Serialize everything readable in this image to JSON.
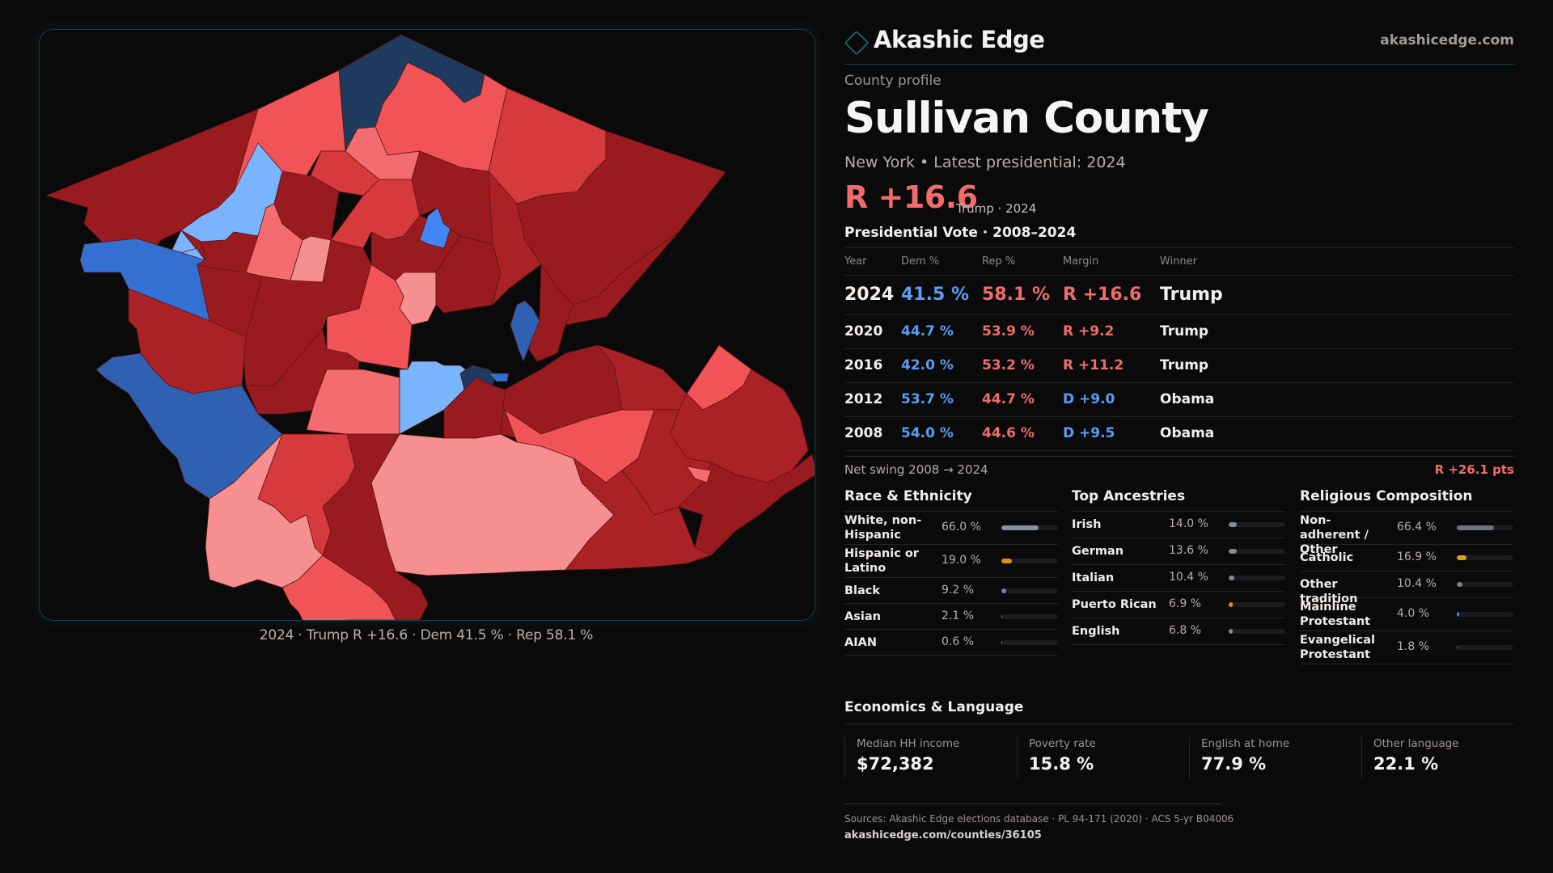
{
  "brand": {
    "name": "Akashic Edge",
    "url": "akashicedge.com",
    "logo_icon": "diamond-outline-icon"
  },
  "profile": {
    "eyebrow": "County profile",
    "county": "Sullivan County",
    "subtitle": "New York  • Latest presidential: 2024",
    "headline_margin": "R +16.6",
    "headline_sub": "Trump · 2024"
  },
  "map": {
    "caption": "2024 · Trump R +16.6 · Dem 41.5 % · Rep 58.1 %",
    "palette": {
      "r_strong": "#9a1b1f",
      "r_lean_dark": "#ab2226",
      "r_mid": "#d63a3d",
      "r_light": "#f05457",
      "r_pale": "#f46c6d",
      "r_pink": "#f68f8f",
      "d_navy": "#1f3a5f",
      "d_blue": "#3470d1",
      "d_bright": "#3f86f4",
      "d_light": "#7ab4ff",
      "d_steel": "#2f60b1"
    }
  },
  "vote": {
    "title": "Presidential Vote · 2008–2024",
    "headers": {
      "year": "Year",
      "dem": "Dem %",
      "rep": "Rep %",
      "margin": "Margin",
      "winner": "Winner"
    },
    "rows": [
      {
        "year": "2024",
        "dem": "41.5 %",
        "rep": "58.1 %",
        "margin": "R +16.6",
        "winner": "Trump",
        "party": "R"
      },
      {
        "year": "2020",
        "dem": "44.7 %",
        "rep": "53.9 %",
        "margin": "R +9.2",
        "winner": "Trump",
        "party": "R"
      },
      {
        "year": "2016",
        "dem": "42.0 %",
        "rep": "53.2 %",
        "margin": "R +11.2",
        "winner": "Trump",
        "party": "R"
      },
      {
        "year": "2012",
        "dem": "53.7 %",
        "rep": "44.7 %",
        "margin": "D +9.0",
        "winner": "Obama",
        "party": "D"
      },
      {
        "year": "2008",
        "dem": "54.0 %",
        "rep": "44.6 %",
        "margin": "D +9.5",
        "winner": "Obama",
        "party": "D"
      }
    ],
    "swing_label": "Net swing 2008 → 2024",
    "swing_value": "R +26.1 pts"
  },
  "race": {
    "title": "Race & Ethnicity",
    "items": [
      {
        "label": "White, non-Hispanic",
        "value": "66.0 %",
        "pct": 66.0,
        "color": "#8590a3"
      },
      {
        "label": "Hispanic or Latino",
        "value": "19.0 %",
        "pct": 19.0,
        "color": "#d9921a"
      },
      {
        "label": "Black",
        "value": "9.2 %",
        "pct": 9.2,
        "color": "#8a6ed6"
      },
      {
        "label": "Asian",
        "value": "2.1 %",
        "pct": 2.1,
        "color": "#2bb17a"
      },
      {
        "label": "AIAN",
        "value": "0.6 %",
        "pct": 0.6,
        "color": "#e07a2a"
      }
    ]
  },
  "ancestry": {
    "title": "Top Ancestries",
    "items": [
      {
        "label": "Irish",
        "value": "14.0 %",
        "pct": 14.0,
        "color": "#7f8a9c"
      },
      {
        "label": "German",
        "value": "13.6 %",
        "pct": 13.6,
        "color": "#7f8a9c"
      },
      {
        "label": "Italian",
        "value": "10.4 %",
        "pct": 10.4,
        "color": "#7f8a9c"
      },
      {
        "label": "Puerto Rican",
        "value": "6.9 %",
        "pct": 6.9,
        "color": "#d9921a"
      },
      {
        "label": "English",
        "value": "6.8 %",
        "pct": 6.8,
        "color": "#7f8a9c"
      }
    ]
  },
  "religion": {
    "title": "Religious Composition",
    "items": [
      {
        "label": "Non-adherent / Other",
        "value": "66.4 %",
        "pct": 66.4,
        "color": "#6b7180"
      },
      {
        "label": "Catholic",
        "value": "16.9 %",
        "pct": 16.9,
        "color": "#d9a21a"
      },
      {
        "label": "Other tradition",
        "value": "10.4 %",
        "pct": 10.4,
        "color": "#7d8088"
      },
      {
        "label": "Mainline Protestant",
        "value": "4.0 %",
        "pct": 4.0,
        "color": "#4a86e8"
      },
      {
        "label": "Evangelical Protestant",
        "value": "1.8 %",
        "pct": 1.8,
        "color": "#e05a5a"
      }
    ]
  },
  "econ": {
    "title": "Economics & Language",
    "items": [
      {
        "label": "Median HH income",
        "value": "$72,382"
      },
      {
        "label": "Poverty rate",
        "value": "15.8 %"
      },
      {
        "label": "English at home",
        "value": "77.9 %"
      },
      {
        "label": "Other language",
        "value": "22.1 %"
      }
    ]
  },
  "footer": {
    "sources": "Sources: Akashic Edge elections database · PL 94-171 (2020) · ACS 5-yr B04006",
    "url": "akashicedge.com/counties/36105"
  }
}
